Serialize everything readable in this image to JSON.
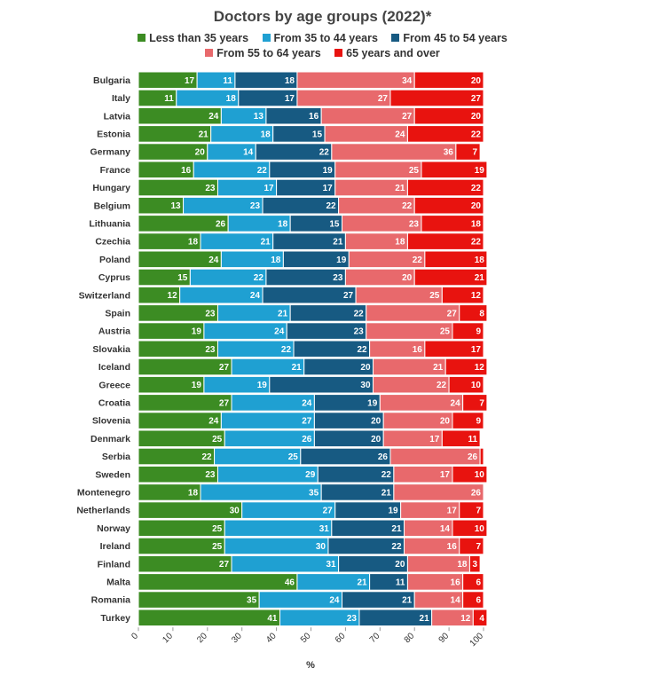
{
  "chart_data": {
    "type": "bar",
    "orientation": "horizontal",
    "stacked": true,
    "title": "Doctors by age groups (2022)*",
    "xlabel": "%",
    "ylabel": "",
    "xlim": [
      0,
      100
    ],
    "xticks": [
      "0",
      "10",
      "20",
      "30",
      "40",
      "50",
      "60",
      "70",
      "80",
      "90",
      "100"
    ],
    "legend_position": "top",
    "categories": [
      "Bulgaria",
      "Italy",
      "Latvia",
      "Estonia",
      "Germany",
      "France",
      "Hungary",
      "Belgium",
      "Lithuania",
      "Czechia",
      "Poland",
      "Cyprus",
      "Switzerland",
      "Spain",
      "Austria",
      "Slovakia",
      "Iceland",
      "Greece",
      "Croatia",
      "Slovenia",
      "Denmark",
      "Serbia",
      "Sweden",
      "Montenegro",
      "Netherlands",
      "Norway",
      "Ireland",
      "Finland",
      "Malta",
      "Romania",
      "Turkey"
    ],
    "series": [
      {
        "name": "Less than 35 years",
        "color": "#3c8c23",
        "values": [
          17,
          11,
          24,
          21,
          20,
          16,
          23,
          13,
          26,
          18,
          24,
          15,
          12,
          23,
          19,
          23,
          27,
          19,
          27,
          24,
          25,
          22,
          23,
          18,
          30,
          25,
          25,
          27,
          46,
          35,
          41
        ]
      },
      {
        "name": "From 35 to 44 years",
        "color": "#1fa0d2",
        "values": [
          11,
          18,
          13,
          18,
          14,
          22,
          17,
          23,
          18,
          21,
          18,
          22,
          24,
          21,
          24,
          22,
          21,
          19,
          24,
          27,
          26,
          25,
          29,
          35,
          27,
          31,
          30,
          31,
          21,
          24,
          23
        ]
      },
      {
        "name": "From 45 to 54 years",
        "color": "#175a82",
        "values": [
          18,
          17,
          16,
          15,
          22,
          19,
          17,
          22,
          15,
          21,
          19,
          23,
          27,
          22,
          23,
          22,
          20,
          30,
          19,
          20,
          20,
          26,
          22,
          21,
          19,
          21,
          22,
          20,
          11,
          21,
          21
        ]
      },
      {
        "name": "From 55 to 64 years",
        "color": "#e8696c",
        "values": [
          34,
          27,
          27,
          24,
          36,
          25,
          21,
          22,
          23,
          18,
          22,
          20,
          25,
          27,
          25,
          16,
          21,
          22,
          24,
          20,
          17,
          26,
          17,
          26,
          17,
          14,
          16,
          18,
          16,
          14,
          12
        ]
      },
      {
        "name": "65 years and over",
        "color": "#e8130f",
        "values": [
          20,
          27,
          20,
          22,
          7,
          19,
          22,
          20,
          18,
          22,
          18,
          21,
          12,
          8,
          9,
          17,
          12,
          10,
          7,
          9,
          11,
          1,
          10,
          0,
          7,
          10,
          7,
          3,
          6,
          6,
          4
        ],
        "labels": [
          "20",
          "27",
          "20",
          "22",
          "7",
          "19",
          "22",
          "20",
          "18",
          "22",
          "18",
          "21",
          "12",
          "8",
          "9",
          "17",
          "12",
          "10",
          "7",
          "9",
          "11",
          "",
          "10",
          "",
          "7",
          "10",
          "7",
          "3",
          "6",
          "6",
          "4"
        ]
      }
    ]
  }
}
